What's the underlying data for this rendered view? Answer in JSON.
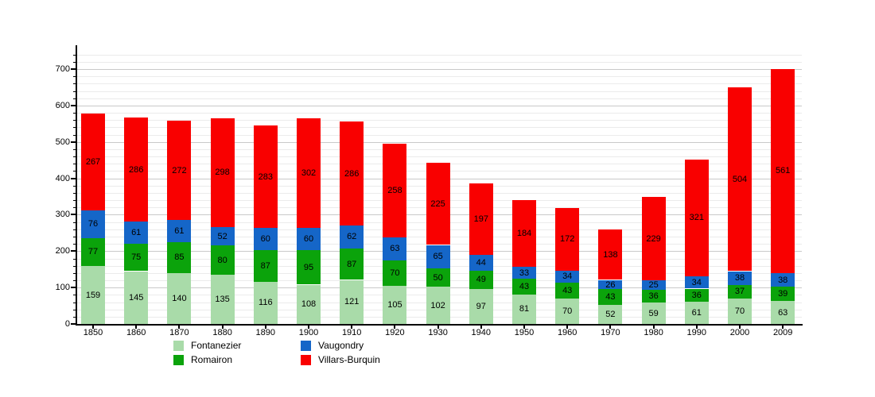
{
  "chart_data": {
    "type": "bar",
    "stacked": true,
    "title": "",
    "xlabel": "",
    "ylabel": "",
    "background_color": "#ffffff",
    "grid": {
      "minor_step": 20,
      "major_step": 100,
      "minor_color": "#ebebeb",
      "major_color": "#c9c9c9"
    },
    "ylim": [
      0,
      754
    ],
    "ytick_labels": [
      "0",
      "100",
      "200",
      "300",
      "400",
      "500",
      "600",
      "700"
    ],
    "legend_position": "bottom",
    "categories": [
      "1850",
      "1860",
      "1870",
      "1880",
      "1890",
      "1900",
      "1910",
      "1920",
      "1930",
      "1940",
      "1950",
      "1960",
      "1970",
      "1980",
      "1990",
      "2000",
      "2009"
    ],
    "series": [
      {
        "name": "Fontanezier",
        "color": "#a9dba9",
        "values": [
          159,
          145,
          140,
          135,
          116,
          108,
          121,
          105,
          102,
          97,
          81,
          70,
          52,
          59,
          61,
          70,
          63
        ]
      },
      {
        "name": "Romairon",
        "color": "#0ba30b",
        "values": [
          77,
          75,
          85,
          80,
          87,
          95,
          87,
          70,
          50,
          49,
          43,
          43,
          43,
          36,
          36,
          37,
          39
        ]
      },
      {
        "name": "Vaugondry",
        "color": "#1566c8",
        "values": [
          76,
          61,
          61,
          52,
          60,
          60,
          62,
          63,
          65,
          44,
          33,
          34,
          26,
          25,
          34,
          38,
          38
        ]
      },
      {
        "name": "Villars-Burquin",
        "color": "#f90000",
        "values": [
          267,
          286,
          272,
          298,
          283,
          302,
          286,
          258,
          225,
          197,
          184,
          172,
          138,
          229,
          321,
          504,
          561
        ]
      }
    ],
    "legend_entries": [
      "Fontanezier",
      "Romairon",
      "Vaugondry",
      "Villars-Burquin"
    ]
  }
}
